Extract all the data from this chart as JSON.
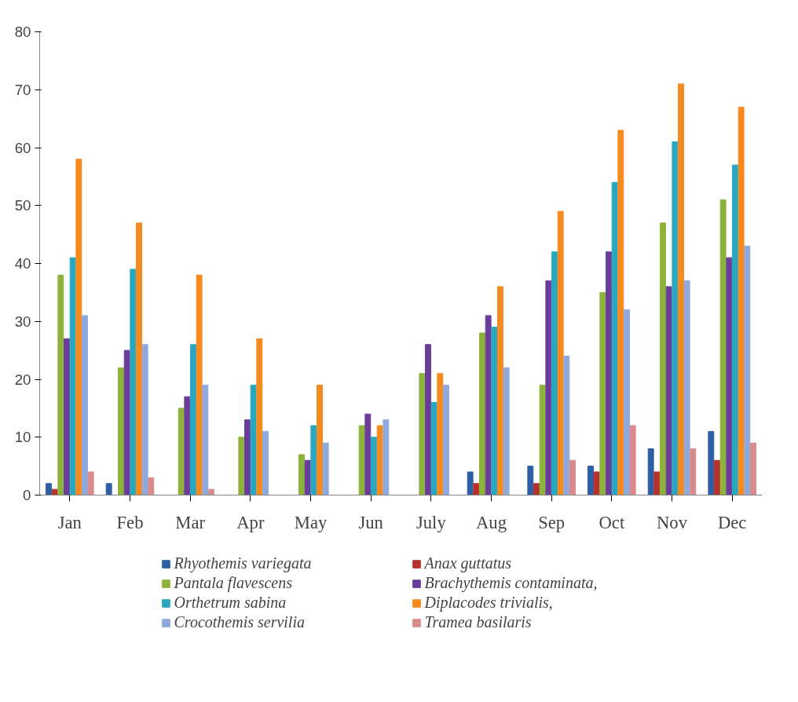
{
  "chart_data": {
    "type": "bar",
    "categories": [
      "Jan",
      "Feb",
      "Mar",
      "Apr",
      "May",
      "Jun",
      "July",
      "Aug",
      "Sep",
      "Oct",
      "Nov",
      "Dec"
    ],
    "ylim": [
      0,
      80
    ],
    "yticks": [
      0,
      10,
      20,
      30,
      40,
      50,
      60,
      70,
      80
    ],
    "grid": false,
    "legend": "bottom",
    "series": [
      {
        "name": "Rhyothemis variegata",
        "color": "#2e5fa5",
        "values": [
          2,
          2,
          0,
          0,
          0,
          0,
          0,
          4,
          5,
          5,
          8,
          11
        ]
      },
      {
        "name": "Anax guttatus",
        "color": "#b7312c",
        "values": [
          1,
          0,
          0,
          0,
          0,
          0,
          0,
          2,
          2,
          4,
          4,
          6
        ]
      },
      {
        "name": "Pantala flavescens",
        "color": "#8db33a",
        "values": [
          38,
          22,
          15,
          10,
          7,
          12,
          21,
          28,
          19,
          35,
          47,
          51
        ]
      },
      {
        "name": "Brachythemis contaminata,",
        "color": "#6a3d9a",
        "values": [
          27,
          25,
          17,
          13,
          6,
          14,
          26,
          31,
          37,
          42,
          36,
          41
        ]
      },
      {
        "name": "Orthetrum sabina",
        "color": "#2aa7c0",
        "values": [
          41,
          39,
          26,
          19,
          12,
          10,
          16,
          29,
          42,
          54,
          61,
          57
        ]
      },
      {
        "name": "Diplacodes trivialis,",
        "color": "#f58a1f",
        "values": [
          58,
          47,
          38,
          27,
          19,
          12,
          21,
          36,
          49,
          63,
          71,
          67
        ]
      },
      {
        "name": "Crocothemis servilia",
        "color": "#8fa9dc",
        "values": [
          31,
          26,
          19,
          11,
          9,
          13,
          19,
          22,
          24,
          32,
          37,
          43
        ]
      },
      {
        "name": "Tramea basilaris",
        "color": "#d98b8b",
        "values": [
          4,
          3,
          1,
          0,
          0,
          0,
          0,
          0,
          6,
          12,
          8,
          9
        ]
      }
    ]
  }
}
